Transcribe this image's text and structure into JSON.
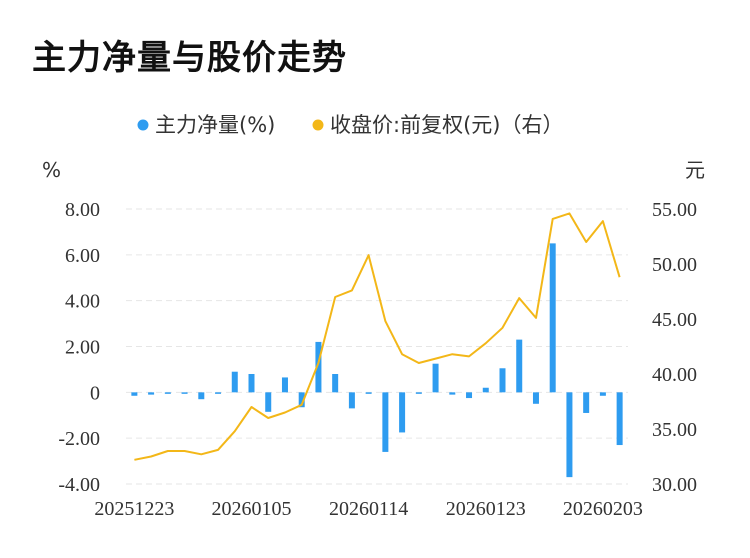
{
  "title": "主力净量与股价走势",
  "colors": {
    "bar": "#2e9cf0",
    "line": "#f3b718",
    "grid": "#e6e6e6",
    "text": "#333333"
  },
  "chart_data": {
    "type": "bar+line",
    "legend": {
      "position": "top-center",
      "items": [
        "主力净量(%)",
        "收盘价:前复权(元)（右）"
      ]
    },
    "left_axis": {
      "unit": "%",
      "ylim": [
        -4,
        8
      ],
      "ticks": [
        8,
        6,
        4,
        2,
        0,
        -2,
        -4
      ],
      "tick_labels": [
        "8.00",
        "6.00",
        "4.00",
        "2.00",
        "0",
        "-2.00",
        "-4.00"
      ]
    },
    "right_axis": {
      "unit": "元",
      "ylim": [
        30,
        55
      ],
      "ticks": [
        55,
        50,
        45,
        40,
        35,
        30
      ],
      "tick_labels": [
        "55.00",
        "50.00",
        "45.00",
        "40.00",
        "35.00",
        "30.00"
      ]
    },
    "x_tick_labels": [
      "20251223",
      "20260105",
      "20260114",
      "20260123",
      "20260203"
    ],
    "x_tick_index": [
      0,
      7,
      14,
      21,
      28
    ],
    "grid": true,
    "series": [
      {
        "name": "主力净量(%)",
        "type": "bar",
        "axis": "left",
        "values": [
          -0.15,
          -0.1,
          -0.05,
          -0.05,
          -0.3,
          -0.05,
          0.9,
          0.8,
          -0.85,
          0.65,
          -0.65,
          2.2,
          0.8,
          -0.7,
          -0.05,
          -2.6,
          -1.75,
          -0.05,
          1.25,
          -0.1,
          -0.25,
          0.2,
          1.05,
          2.3,
          -0.5,
          6.5,
          -3.7,
          -0.9,
          -0.15,
          -2.3
        ]
      },
      {
        "name": "收盘价:前复权(元)（右）",
        "type": "line",
        "axis": "right",
        "values": [
          32.2,
          32.5,
          33.0,
          33.0,
          32.7,
          33.1,
          34.8,
          37.0,
          36.0,
          36.5,
          37.2,
          41.0,
          47.0,
          47.6,
          50.8,
          44.8,
          41.8,
          41.0,
          41.4,
          41.8,
          41.6,
          42.8,
          44.2,
          46.9,
          45.1,
          54.1,
          54.6,
          52.0,
          53.9,
          48.8
        ]
      }
    ]
  }
}
